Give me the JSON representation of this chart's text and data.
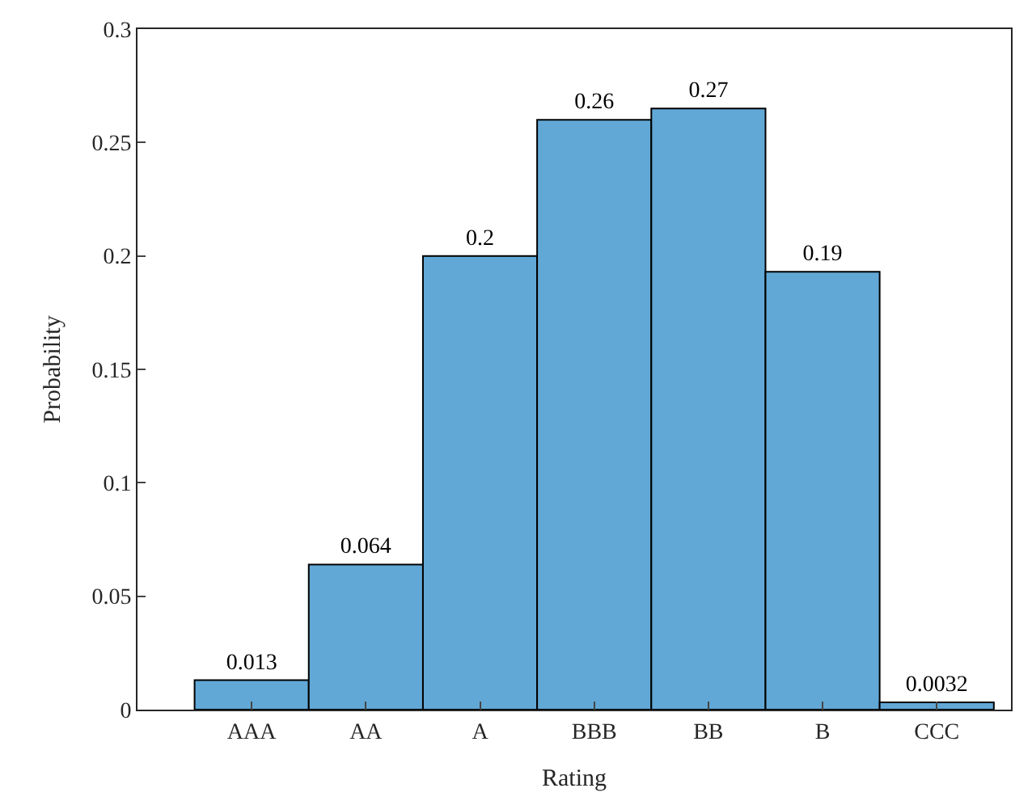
{
  "chart_data": {
    "type": "bar",
    "xlabel": "Rating",
    "ylabel": "Probability",
    "categories": [
      "AAA",
      "AA",
      "A",
      "BBB",
      "BB",
      "B",
      "CCC"
    ],
    "values": [
      0.013,
      0.064,
      0.2,
      0.26,
      0.265,
      0.193,
      0.0032
    ],
    "value_labels": [
      "0.013",
      "0.064",
      "0.2",
      "0.26",
      "0.27",
      "0.19",
      "0.0032"
    ],
    "color": "#62a8d7",
    "ylim": [
      0,
      0.3
    ],
    "yticks": [
      0,
      0.05,
      0.1,
      0.15,
      0.2,
      0.25,
      0.3
    ]
  }
}
